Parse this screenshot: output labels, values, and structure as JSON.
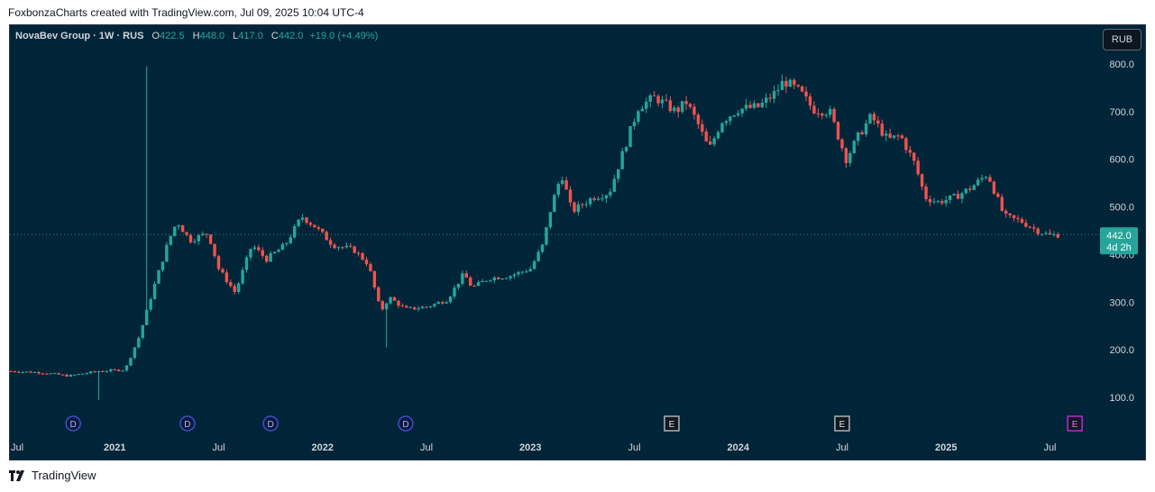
{
  "header": {
    "credit": "FoxbonzaCharts created with TradingView.com, Jul 09, 2025 10:04 UTC-4"
  },
  "legend": {
    "symbol": "NovaBev Group · 1W · RUS",
    "o_label": "O",
    "o_val": "422.5",
    "h_label": "H",
    "h_val": "448.0",
    "l_label": "L",
    "l_val": "417.0",
    "c_label": "C",
    "c_val": "442.0",
    "change": "+19.0 (+4.49%)"
  },
  "currency_button": "RUB",
  "price_badge": {
    "price": "442.0",
    "countdown": "4d 2h"
  },
  "footer": {
    "brand": "TradingView"
  },
  "colors": {
    "up": "#26a69a",
    "down": "#ef5350",
    "background": "#012538",
    "axis_text": "#d1d4dc"
  },
  "chart_data": {
    "type": "candlestick",
    "interval": "1W",
    "currency": "RUB",
    "y_ticks": [
      "800.0",
      "700.0",
      "600.0",
      "500.0",
      "400.0",
      "300.0",
      "200.0",
      "100.0"
    ],
    "x_ticks": [
      {
        "label": "Jul",
        "t": 2020.5
      },
      {
        "label": "2021",
        "t": 2021.0
      },
      {
        "label": "Jul",
        "t": 2021.5
      },
      {
        "label": "2022",
        "t": 2022.0
      },
      {
        "label": "Jul",
        "t": 2022.5
      },
      {
        "label": "2023",
        "t": 2023.0
      },
      {
        "label": "Jul",
        "t": 2023.5
      },
      {
        "label": "2024",
        "t": 2024.0
      },
      {
        "label": "Jul",
        "t": 2024.5
      },
      {
        "label": "2025",
        "t": 2025.0
      },
      {
        "label": "Jul",
        "t": 2025.5
      }
    ],
    "events": [
      {
        "type": "D",
        "t": 2020.8
      },
      {
        "type": "D",
        "t": 2021.35
      },
      {
        "type": "D",
        "t": 2021.75
      },
      {
        "type": "D",
        "t": 2022.4
      },
      {
        "type": "E",
        "t": 2023.68
      },
      {
        "type": "E",
        "t": 2024.5
      },
      {
        "type": "E",
        "t": 2025.62
      }
    ],
    "last_price": 442.0,
    "anchors": [
      [
        2020.5,
        155
      ],
      [
        2020.65,
        152
      ],
      [
        2020.78,
        145
      ],
      [
        2020.92,
        155
      ],
      [
        2021.05,
        158
      ],
      [
        2021.12,
        230
      ],
      [
        2021.18,
        320
      ],
      [
        2021.26,
        430
      ],
      [
        2021.3,
        470
      ],
      [
        2021.36,
        430
      ],
      [
        2021.45,
        445
      ],
      [
        2021.5,
        370
      ],
      [
        2021.58,
        320
      ],
      [
        2021.66,
        420
      ],
      [
        2021.73,
        390
      ],
      [
        2021.82,
        420
      ],
      [
        2021.9,
        480
      ],
      [
        2021.96,
        460
      ],
      [
        2022.05,
        420
      ],
      [
        2022.15,
        410
      ],
      [
        2022.22,
        380
      ],
      [
        2022.28,
        280
      ],
      [
        2022.32,
        310
      ],
      [
        2022.4,
        285
      ],
      [
        2022.5,
        290
      ],
      [
        2022.6,
        305
      ],
      [
        2022.68,
        360
      ],
      [
        2022.72,
        330
      ],
      [
        2022.8,
        350
      ],
      [
        2022.9,
        355
      ],
      [
        2023.0,
        370
      ],
      [
        2023.06,
        420
      ],
      [
        2023.1,
        500
      ],
      [
        2023.15,
        570
      ],
      [
        2023.2,
        490
      ],
      [
        2023.3,
        520
      ],
      [
        2023.38,
        530
      ],
      [
        2023.45,
        620
      ],
      [
        2023.52,
        710
      ],
      [
        2023.6,
        730
      ],
      [
        2023.7,
        700
      ],
      [
        2023.75,
        720
      ],
      [
        2023.8,
        680
      ],
      [
        2023.86,
        620
      ],
      [
        2023.92,
        680
      ],
      [
        2024.0,
        705
      ],
      [
        2024.1,
        710
      ],
      [
        2024.18,
        740
      ],
      [
        2024.22,
        765
      ],
      [
        2024.3,
        740
      ],
      [
        2024.36,
        705
      ],
      [
        2024.44,
        700
      ],
      [
        2024.52,
        600
      ],
      [
        2024.58,
        650
      ],
      [
        2024.64,
        690
      ],
      [
        2024.72,
        640
      ],
      [
        2024.78,
        650
      ],
      [
        2024.85,
        590
      ],
      [
        2024.9,
        520
      ],
      [
        2024.96,
        510
      ],
      [
        2025.04,
        520
      ],
      [
        2025.12,
        540
      ],
      [
        2025.2,
        570
      ],
      [
        2025.28,
        480
      ],
      [
        2025.36,
        470
      ],
      [
        2025.44,
        450
      ],
      [
        2025.5,
        440
      ],
      [
        2025.55,
        442
      ]
    ]
  }
}
